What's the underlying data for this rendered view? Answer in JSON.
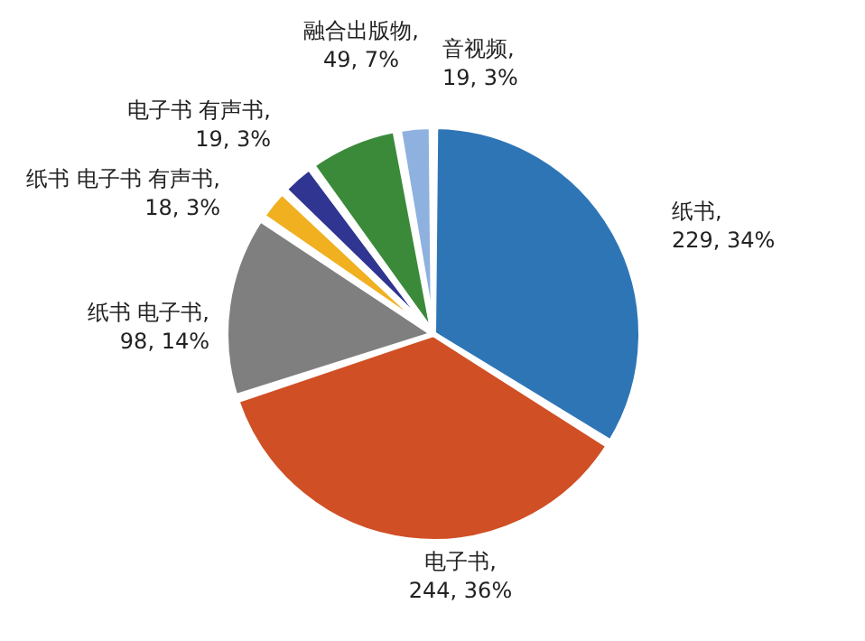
{
  "chart_data": {
    "type": "pie",
    "categories": [
      "纸书",
      "电子书",
      "纸书 电子书",
      "纸书 电子书 有声书",
      "电子书 有声书",
      "融合出版物",
      "音视频"
    ],
    "values": [
      229,
      244,
      98,
      18,
      19,
      49,
      19
    ],
    "colors": [
      "#2e75b6",
      "#d04f25",
      "#7f7f7f",
      "#f0b020",
      "#2f3590",
      "#3a8a3a",
      "#8fb1e0"
    ],
    "value_labels": [
      ", 229, 34%",
      ", 244, 36%",
      ", 98, 14%",
      ", 18, 3%",
      ", 19, 3%",
      ", 49, 7%",
      ", 19, 3%"
    ]
  }
}
